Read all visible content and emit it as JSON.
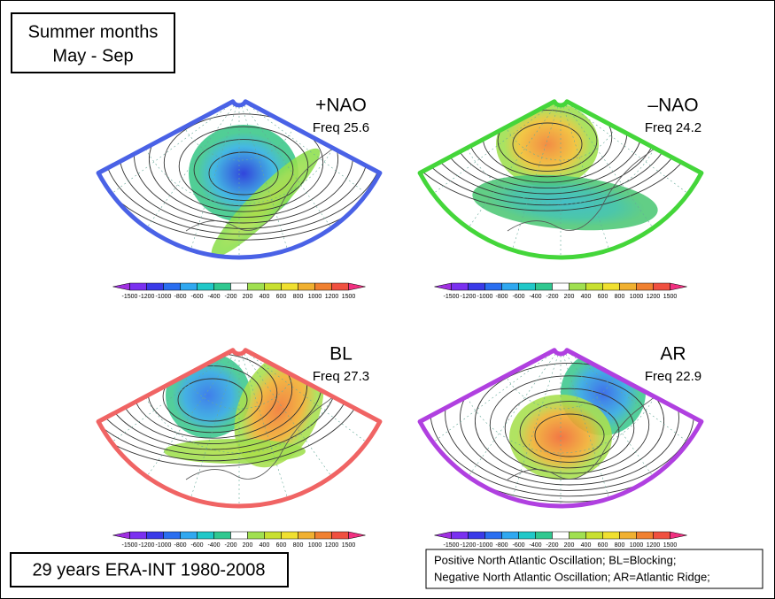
{
  "header": {
    "lines": [
      "Summer months",
      "May - Sep"
    ]
  },
  "panels": [
    {
      "name": "+NAO",
      "freq": "Freq 25.6",
      "color": "#4a62e6"
    },
    {
      "name": "–NAO",
      "freq": "Freq 24.2",
      "color": "#44d63a"
    },
    {
      "name": "BL",
      "freq": "Freq 27.3",
      "color": "#f06464"
    },
    {
      "name": "AR",
      "freq": "Freq 22.9",
      "color": "#b040e0"
    }
  ],
  "colorbar": {
    "ticks": [
      -1500,
      -1200,
      -1000,
      -800,
      -600,
      -400,
      -200,
      200,
      400,
      600,
      800,
      1000,
      1200,
      1500
    ],
    "colors": [
      "#a030e0",
      "#7a30f0",
      "#3a3ae8",
      "#2a6ef0",
      "#30a8f0",
      "#20c8c8",
      "#30c890",
      "#ffffff",
      "#a0e050",
      "#c8e030",
      "#f0e030",
      "#f0b030",
      "#f08030",
      "#f05040",
      "#f03080"
    ]
  },
  "footer": "29 years ERA-INT 1980-2008",
  "legend": [
    "Positive North Atlantic Oscillation; BL=Blocking;",
    "Negative North Atlantic Oscillation; AR=Atlantic Ridge;"
  ]
}
